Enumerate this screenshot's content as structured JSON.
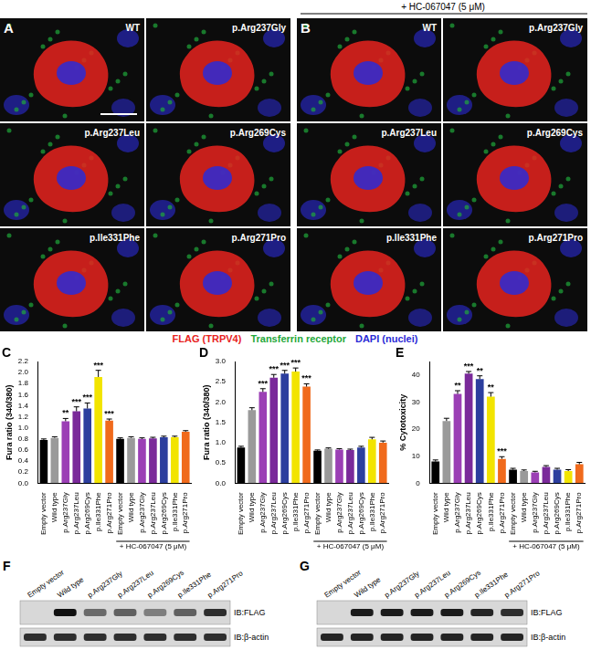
{
  "figure": {
    "image_panels": [
      {
        "label": "A",
        "tiles": [
          "WT",
          "p.Arg237Gly",
          "p.Arg237Leu",
          "p.Arg269Cys",
          "p.Ile331Phe",
          "p.Arg271Pro"
        ]
      },
      {
        "label": "B",
        "header": "+ HC-067047 (5 μM)",
        "tiles": [
          "WT",
          "p.Arg237Gly",
          "p.Arg237Leu",
          "p.Arg269Cys",
          "p.Ile331Phe",
          "p.Arg271Pro"
        ]
      }
    ],
    "stain_legend": [
      {
        "text": "FLAG (TRPV4)",
        "color": "#e8231e"
      },
      {
        "text": "Transferrin receptor",
        "color": "#1fa83a"
      },
      {
        "text": "DAPI (nuclei)",
        "color": "#2b2bd6"
      }
    ],
    "blots": [
      {
        "label": "F",
        "lanes": [
          "Empty vector",
          "Wild type",
          "p.Arg237Gly",
          "p.Arg237Leu",
          "p.Arg269Cys",
          "p.Ile331Phe",
          "p.Arg271Pro"
        ],
        "rows": [
          {
            "name": "IB:FLAG",
            "intensity": [
              0,
              1,
              0.55,
              0.6,
              0.45,
              0.6,
              0.85
            ]
          },
          {
            "name": "IB:β-actin",
            "intensity": [
              0.85,
              0.85,
              0.85,
              0.85,
              0.85,
              0.85,
              0.85
            ]
          }
        ]
      },
      {
        "label": "G",
        "lanes": [
          "Empty vector",
          "Wild type",
          "p.Arg237Gly",
          "p.Arg237Leu",
          "p.Arg269Cys",
          "p.Ile331Phe",
          "p.Arg271Pro"
        ],
        "rows": [
          {
            "name": "IB:FLAG",
            "intensity": [
              0,
              0.95,
              0.95,
              0.95,
              0.95,
              0.9,
              0.85
            ]
          },
          {
            "name": "IB:β-actin",
            "intensity": [
              0.9,
              0.9,
              0.9,
              0.9,
              0.9,
              0.9,
              0.9
            ]
          }
        ]
      }
    ]
  },
  "chart_data": [
    {
      "type": "bar",
      "title": "C",
      "ylabel": "Fura ratio (340/380)",
      "group_label": "+ HC-067047 (5 μM)",
      "categories": [
        "Empty vector",
        "Wild type",
        "p.Arg237Gly",
        "p.Arg237Leu",
        "p.Arg269Cys",
        "p.Ile331Phe",
        "p.Arg271Pro",
        "Empty vector",
        "Wild type",
        "p.Arg237Gly",
        "p.Arg237Leu",
        "p.Arg269Cys",
        "p.Ile331Phe",
        "p.Arg271Pro"
      ],
      "values": [
        0.78,
        0.82,
        1.12,
        1.3,
        1.35,
        1.92,
        1.13,
        0.8,
        0.82,
        0.8,
        0.81,
        0.83,
        0.83,
        0.93
      ],
      "errors": [
        0.02,
        0.02,
        0.05,
        0.08,
        0.1,
        0.12,
        0.03,
        0.02,
        0.02,
        0.02,
        0.02,
        0.02,
        0.02,
        0.02
      ],
      "significance": [
        null,
        null,
        "**",
        "***",
        "***",
        "***",
        "***",
        null,
        null,
        null,
        null,
        null,
        null,
        null
      ],
      "colors": [
        "#000000",
        "#9a9a9a",
        "#9b3fb5",
        "#7a2a9a",
        "#2c3e9e",
        "#f2e400",
        "#f06a1c",
        "#000000",
        "#9a9a9a",
        "#9b3fb5",
        "#7a2a9a",
        "#2c3e9e",
        "#f2e400",
        "#f06a1c"
      ],
      "ylim": [
        0,
        2.2
      ],
      "yticks": [
        {
          "value": 0,
          "label": "0.0"
        },
        {
          "value": 0.2,
          "label": "0.2"
        },
        {
          "value": 0.4,
          "label": "0.4"
        },
        {
          "value": 0.6,
          "label": "0.6"
        },
        {
          "value": 0.8,
          "label": "0.8"
        },
        {
          "value": 1.0,
          "label": "1.0"
        },
        {
          "value": 1.2,
          "label": "1.2"
        },
        {
          "value": 1.4,
          "label": "1.4"
        },
        {
          "value": 1.6,
          "label": "1.6"
        },
        {
          "value": 1.8,
          "label": "1.8"
        },
        {
          "value": 2.0,
          "label": "2.0"
        },
        {
          "value": 2.2,
          "label": "2.2"
        }
      ],
      "grid": false
    },
    {
      "type": "bar",
      "title": "D",
      "ylabel": "Fura ratio (340/380)",
      "group_label": "+ HC-067047 (5 μM)",
      "categories": [
        "Empty vector",
        "Wild type",
        "p.Arg237Gly",
        "p.Arg237Leu",
        "p.Arg269Cys",
        "p.Ile331Phe",
        "p.Arg271Pro",
        "Empty vector",
        "Wild type",
        "p.Arg237Gly",
        "p.Arg237Leu",
        "p.Arg269Cys",
        "p.Ile331Phe",
        "p.Arg271Pro"
      ],
      "values": [
        0.88,
        1.8,
        2.25,
        2.6,
        2.7,
        2.75,
        2.38,
        0.8,
        0.85,
        0.83,
        0.82,
        0.88,
        1.08,
        1.0
      ],
      "errors": [
        0.03,
        0.06,
        0.08,
        0.08,
        0.08,
        0.09,
        0.07,
        0.02,
        0.02,
        0.02,
        0.02,
        0.03,
        0.05,
        0.04
      ],
      "significance": [
        null,
        null,
        "***",
        "***",
        "***",
        "***",
        "***",
        null,
        null,
        null,
        null,
        null,
        null,
        null
      ],
      "colors": [
        "#000000",
        "#9a9a9a",
        "#9b3fb5",
        "#7a2a9a",
        "#2c3e9e",
        "#f2e400",
        "#f06a1c",
        "#000000",
        "#9a9a9a",
        "#9b3fb5",
        "#7a2a9a",
        "#2c3e9e",
        "#f2e400",
        "#f06a1c"
      ],
      "ylim": [
        0,
        3.0
      ],
      "yticks": [
        {
          "value": 0,
          "label": "0.0"
        },
        {
          "value": 0.5,
          "label": "0.5"
        },
        {
          "value": 1.0,
          "label": "1.0"
        },
        {
          "value": 1.5,
          "label": "1.5"
        },
        {
          "value": 2.0,
          "label": "2.0"
        },
        {
          "value": 2.5,
          "label": "2.5"
        },
        {
          "value": 3.0,
          "label": "3.0"
        }
      ],
      "grid": false
    },
    {
      "type": "bar",
      "title": "E",
      "ylabel": "% Cytotoxicity",
      "group_label": "+ HC-067047 (5 μM)",
      "categories": [
        "Empty vector",
        "Wild type",
        "p.Arg237Gly",
        "p.Arg237Leu",
        "p.Arg269Cys",
        "p.Ile331Phe",
        "p.Arg271Pro",
        "Empty vector",
        "Wild type",
        "p.Arg237Gly",
        "p.Arg237Leu",
        "p.Arg269Cys",
        "p.Ile331Phe",
        "p.Arg271Pro"
      ],
      "values": [
        8,
        23,
        33,
        40.5,
        38.5,
        32,
        9,
        5,
        4.5,
        4,
        6,
        5,
        4.5,
        7
      ],
      "errors": [
        0.6,
        1.0,
        1.2,
        0.8,
        1.2,
        1.5,
        0.8,
        0.5,
        0.4,
        0.4,
        0.5,
        0.5,
        0.5,
        0.7
      ],
      "significance": [
        null,
        null,
        "**",
        "***",
        "**",
        "**",
        "***",
        null,
        null,
        null,
        null,
        null,
        null,
        null
      ],
      "colors": [
        "#000000",
        "#9a9a9a",
        "#9b3fb5",
        "#7a2a9a",
        "#2c3e9e",
        "#f2e400",
        "#f06a1c",
        "#000000",
        "#9a9a9a",
        "#9b3fb5",
        "#7a2a9a",
        "#2c3e9e",
        "#f2e400",
        "#f06a1c"
      ],
      "ylim": [
        0,
        45
      ],
      "yticks": [
        0,
        10,
        20,
        30,
        40
      ],
      "grid": false
    }
  ]
}
